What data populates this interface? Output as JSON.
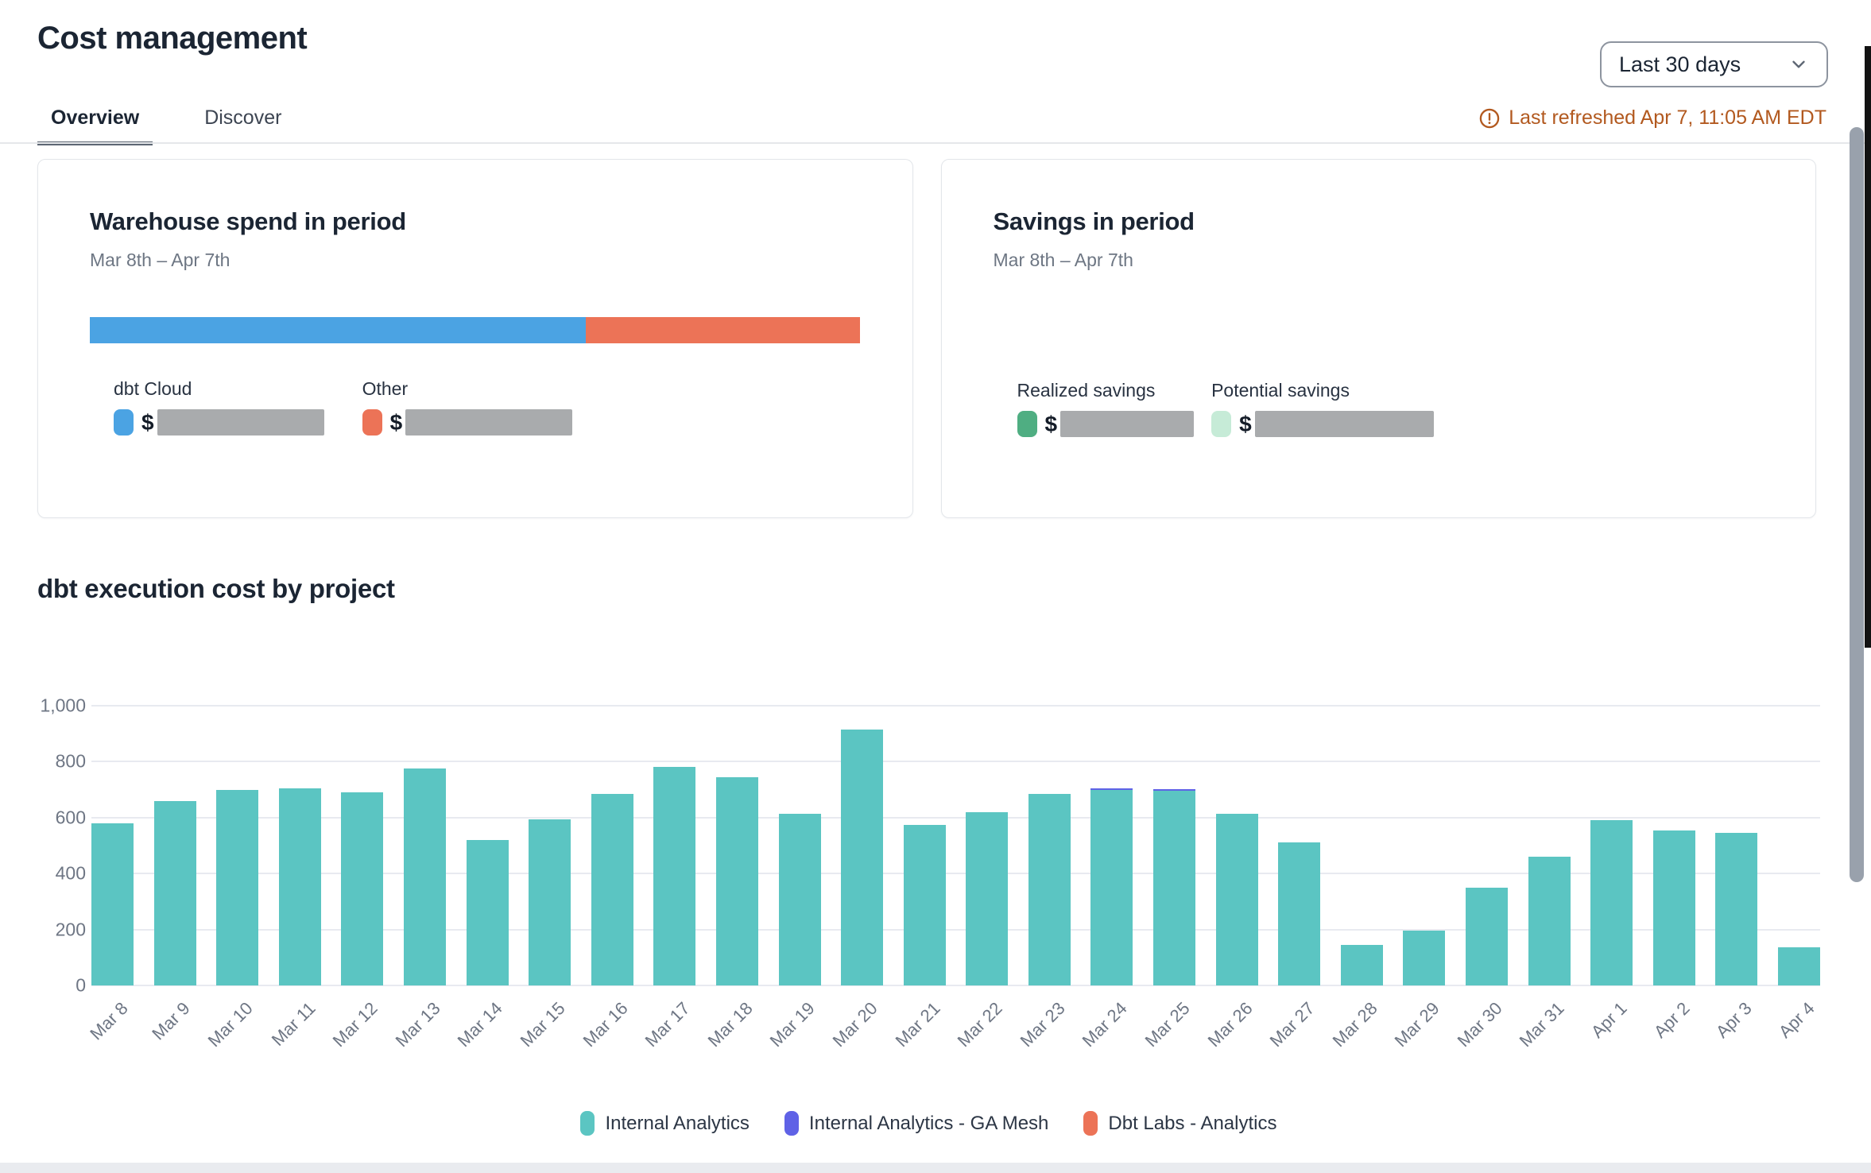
{
  "header": {
    "title": "Cost management",
    "tabs": [
      {
        "label": "Overview",
        "active": true
      },
      {
        "label": "Discover",
        "active": false
      }
    ],
    "date_range_selector": {
      "value": "Last 30 days",
      "icon": "chevron-down-icon"
    },
    "last_refreshed": "Last refreshed Apr 7, 11:05 AM EDT",
    "refresh_icon": "alert-circle-icon",
    "refresh_color": "#B2591F"
  },
  "cards": {
    "warehouse_spend": {
      "title": "Warehouse spend in period",
      "period": "Mar 8th – Apr 7th",
      "bar_segments": [
        {
          "name": "dbt Cloud",
          "color": "#4BA3E3",
          "percent": 64.4
        },
        {
          "name": "Other",
          "color": "#EC7357",
          "percent": 35.6
        }
      ],
      "legend": [
        {
          "label": "dbt Cloud",
          "color": "#4BA3E3",
          "currency": "$",
          "value_masked": true
        },
        {
          "label": "Other",
          "color": "#EC7357",
          "currency": "$",
          "value_masked": true
        }
      ]
    },
    "savings": {
      "title": "Savings in period",
      "period": "Mar 8th – Apr 7th",
      "legend": [
        {
          "label": "Realized savings",
          "color": "#4FAE82",
          "currency": "$",
          "value_masked": true
        },
        {
          "label": "Potential savings",
          "color": "#C6EBD7",
          "currency": "$",
          "value_masked": true
        }
      ]
    }
  },
  "chart_section": {
    "title": "dbt execution cost by project"
  },
  "chart_data": {
    "type": "bar",
    "stacked": true,
    "title": "dbt execution cost by project",
    "xlabel": "",
    "ylabel": "",
    "ylim": [
      0,
      1000
    ],
    "yticks": [
      {
        "value": 0,
        "label": "0"
      },
      {
        "value": 200,
        "label": "200"
      },
      {
        "value": 400,
        "label": "400"
      },
      {
        "value": 600,
        "label": "600"
      },
      {
        "value": 800,
        "label": "800"
      },
      {
        "value": 1000,
        "label": "1,000"
      }
    ],
    "grid": true,
    "legend_position": "bottom",
    "categories": [
      "Mar 8",
      "Mar 9",
      "Mar 10",
      "Mar 11",
      "Mar 12",
      "Mar 13",
      "Mar 14",
      "Mar 15",
      "Mar 16",
      "Mar 17",
      "Mar 18",
      "Mar 19",
      "Mar 20",
      "Mar 21",
      "Mar 22",
      "Mar 23",
      "Mar 24",
      "Mar 25",
      "Mar 26",
      "Mar 27",
      "Mar 28",
      "Mar 29",
      "Mar 30",
      "Mar 31",
      "Apr 1",
      "Apr 2",
      "Apr 3",
      "Apr 4"
    ],
    "series": [
      {
        "name": "Internal Analytics",
        "color": "#5BC5C2",
        "values": [
          580,
          660,
          700,
          705,
          690,
          775,
          520,
          595,
          685,
          780,
          745,
          615,
          915,
          575,
          620,
          685,
          700,
          695,
          615,
          510,
          145,
          195,
          350,
          460,
          590,
          555,
          545,
          135
        ]
      },
      {
        "name": "Internal Analytics - GA Mesh",
        "color": "#5F62E6",
        "values": [
          0,
          0,
          0,
          0,
          0,
          0,
          0,
          0,
          0,
          0,
          0,
          0,
          0,
          0,
          0,
          0,
          6,
          8,
          0,
          0,
          0,
          0,
          0,
          0,
          0,
          0,
          0,
          0
        ]
      },
      {
        "name": "Dbt Labs - Analytics",
        "color": "#EC7357",
        "values": [
          0,
          0,
          0,
          0,
          0,
          0,
          0,
          0,
          0,
          0,
          0,
          0,
          0,
          0,
          0,
          0,
          0,
          0,
          0,
          0,
          0,
          0,
          0,
          0,
          0,
          0,
          0,
          0
        ]
      }
    ]
  }
}
